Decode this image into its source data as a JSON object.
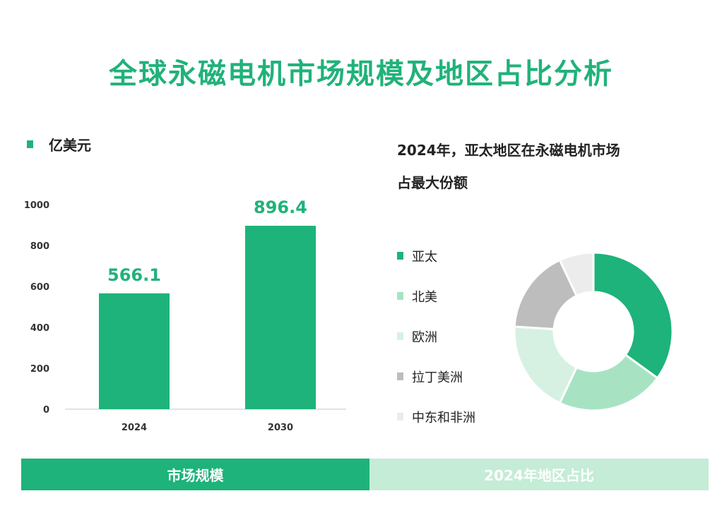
{
  "title": "全球永磁电机市场规模及地区占比分析",
  "colors": {
    "title": "#20b27a",
    "bar": "#1db37a",
    "data_label": "#20b27a",
    "footer_left": "#1db37a",
    "footer_right": "#c5ecd6"
  },
  "chart_data": [
    {
      "type": "bar",
      "legend_label": "亿美元",
      "categories": [
        "2024",
        "2030"
      ],
      "values": [
        566.1,
        896.4
      ],
      "data_labels": [
        "566.1",
        "896.4"
      ],
      "ylim": [
        0,
        1000
      ],
      "yticks": [
        "0",
        "200",
        "400",
        "600",
        "800",
        "1000"
      ],
      "grid": false
    },
    {
      "type": "pie",
      "donut": true,
      "title_lines": [
        "2024年，亚太地区在永磁电机市场",
        "占最大份额"
      ],
      "legend_position": "left",
      "slices": [
        {
          "label": "亚太",
          "value": 35,
          "color": "#1db37a"
        },
        {
          "label": "北美",
          "value": 22,
          "color": "#a7e3c3"
        },
        {
          "label": "欧洲",
          "value": 19,
          "color": "#d6f1e2"
        },
        {
          "label": "拉丁美洲",
          "value": 17,
          "color": "#bdbdbd"
        },
        {
          "label": "中东和非洲",
          "value": 7,
          "color": "#ececec"
        }
      ]
    }
  ],
  "footer": {
    "left_label": "市场规模",
    "right_label": "2024年地区占比"
  }
}
